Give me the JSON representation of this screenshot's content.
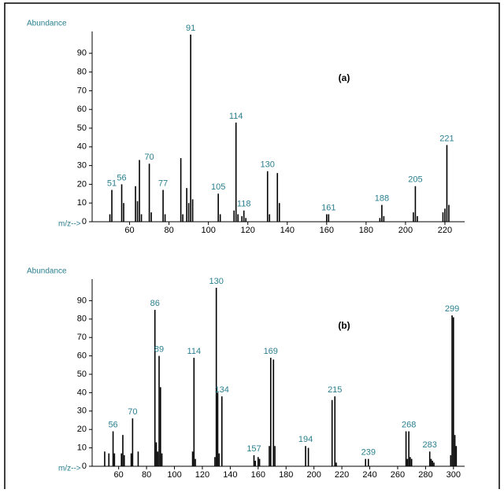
{
  "chart_data": [
    {
      "type": "bar",
      "title": "(a)",
      "ylabel": "Abundance",
      "xlabel": "m/z-->",
      "color": "#000000",
      "label_color": "#2a7f8f",
      "x": [
        50,
        51,
        56,
        57,
        63,
        64,
        65,
        66,
        70,
        71,
        77,
        78,
        86,
        87,
        89,
        90,
        91,
        92,
        105,
        106,
        113,
        114,
        115,
        117,
        118,
        119,
        130,
        131,
        135,
        136,
        160,
        161,
        187,
        188,
        189,
        204,
        205,
        206,
        219,
        220,
        221,
        222
      ],
      "values": [
        4,
        17,
        20,
        10,
        19,
        11,
        33,
        4,
        31,
        5,
        17,
        4,
        34,
        4,
        18,
        10,
        100,
        12,
        15,
        4,
        6,
        53,
        4,
        3,
        6,
        2,
        27,
        4,
        26,
        10,
        4,
        4,
        2,
        9,
        3,
        5,
        19,
        3,
        5,
        7,
        41,
        9
      ],
      "peak_labels": [
        51,
        56,
        70,
        77,
        91,
        105,
        114,
        118,
        130,
        161,
        188,
        205,
        221
      ],
      "xlim": [
        41,
        230
      ],
      "ylim": [
        0,
        100
      ],
      "xticks": [
        60,
        80,
        100,
        120,
        140,
        160,
        180,
        200,
        220
      ],
      "yticks": [
        0,
        10,
        20,
        30,
        40,
        50,
        60,
        70,
        80,
        90
      ]
    },
    {
      "type": "bar",
      "title": "(b)",
      "ylabel": "Abundance",
      "xlabel": "m/z-->",
      "color": "#000000",
      "label_color": "#2a7f8f",
      "x": [
        50,
        53,
        56,
        57,
        62,
        63,
        64,
        69,
        70,
        74,
        86,
        87,
        88,
        89,
        90,
        91,
        113,
        114,
        115,
        129,
        130,
        131,
        132,
        134,
        157,
        158,
        160,
        161,
        168,
        169,
        171,
        172,
        194,
        196,
        213,
        215,
        216,
        237,
        239,
        266,
        267,
        268,
        269,
        270,
        283,
        284,
        285,
        286,
        298,
        299,
        300,
        301,
        302
      ],
      "values": [
        8,
        7,
        19,
        7,
        7,
        17,
        6,
        7,
        26,
        8,
        85,
        13,
        8,
        60,
        43,
        7,
        8,
        59,
        4,
        5,
        97,
        40,
        7,
        38,
        6,
        3,
        5,
        4,
        11,
        59,
        58,
        11,
        11,
        10,
        36,
        38,
        2,
        4,
        4,
        19,
        4,
        19,
        5,
        4,
        8,
        4,
        3,
        2,
        6,
        82,
        81,
        17,
        11
      ],
      "peak_labels": [
        56,
        70,
        86,
        89,
        114,
        130,
        134,
        157,
        169,
        194,
        215,
        239,
        268,
        283,
        299
      ],
      "xlim": [
        41,
        308
      ],
      "ylim": [
        0,
        100
      ],
      "xticks": [
        60,
        80,
        100,
        120,
        140,
        160,
        180,
        200,
        220,
        240,
        260,
        280,
        300
      ],
      "yticks": [
        0,
        10,
        20,
        30,
        40,
        50,
        60,
        70,
        80,
        90
      ]
    }
  ]
}
